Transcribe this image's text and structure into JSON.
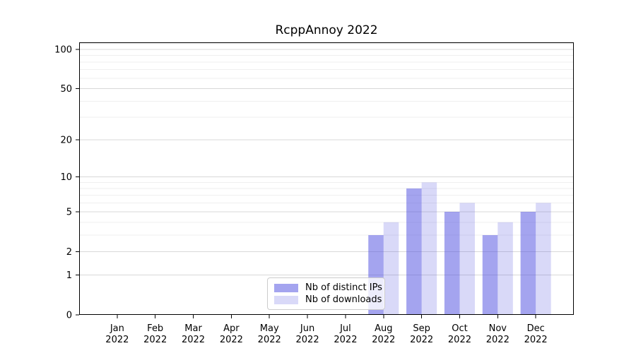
{
  "title": "RcppAnnoy 2022",
  "colors": {
    "accent": "#5050E1",
    "bar_ips": "rgba(80,80,225,0.52)",
    "bar_downloads": "rgba(80,80,225,0.22)",
    "grid_major": "#d8d8d8",
    "grid_minor": "#efefef",
    "axis": "#000000",
    "text": "#000000",
    "legend_border": "#cccccc"
  },
  "legend": {
    "entries": [
      {
        "label": "Nb of distinct IPs",
        "swatch": "bar_ips"
      },
      {
        "label": "Nb of downloads",
        "swatch": "bar_downloads"
      }
    ],
    "position": "lower center"
  },
  "chart_data": {
    "type": "bar",
    "title": "RcppAnnoy 2022",
    "categories": [
      "Jan",
      "Feb",
      "Mar",
      "Apr",
      "May",
      "Jun",
      "Jul",
      "Aug",
      "Sep",
      "Oct",
      "Nov",
      "Dec"
    ],
    "x_year_label": "2022",
    "series": [
      {
        "name": "Nb of distinct IPs",
        "values": [
          0,
          0,
          0,
          0,
          0,
          0,
          0,
          3,
          8,
          5,
          3,
          5
        ]
      },
      {
        "name": "Nb of downloads",
        "values": [
          0,
          0,
          0,
          0,
          0,
          0,
          0,
          4,
          9,
          6,
          4,
          6
        ]
      }
    ],
    "yscale": "log1p",
    "yticks": [
      0,
      1,
      2,
      5,
      10,
      20,
      50,
      100
    ],
    "minor_yticks": [
      3,
      4,
      6,
      7,
      8,
      9,
      30,
      40,
      60,
      70,
      80,
      90,
      110
    ],
    "ylim": [
      0,
      113
    ],
    "xlim": [
      -1,
      12
    ],
    "xlabel": "",
    "ylabel": "",
    "grid": true,
    "legend_position": "lower center",
    "bar_width_units": 0.4
  }
}
